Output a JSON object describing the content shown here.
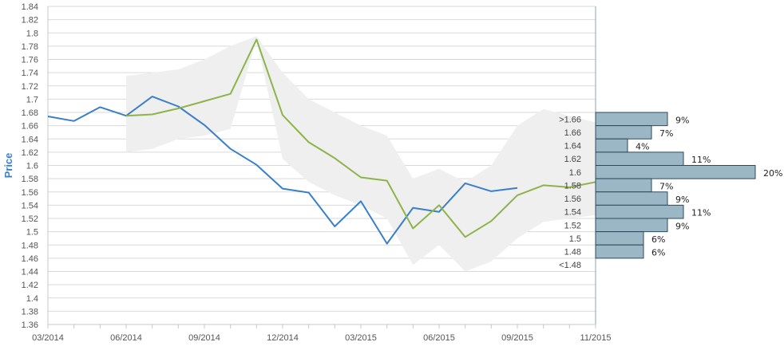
{
  "chart_data": {
    "type": "line",
    "ylabel": "Price",
    "ylim": [
      1.36,
      1.84
    ],
    "y_ticks": [
      "1.36",
      "1.38",
      "1.4",
      "1.42",
      "1.44",
      "1.46",
      "1.48",
      "1.5",
      "1.52",
      "1.54",
      "1.56",
      "1.58",
      "1.6",
      "1.62",
      "1.64",
      "1.66",
      "1.68",
      "1.7",
      "1.72",
      "1.74",
      "1.76",
      "1.78",
      "1.8",
      "1.82",
      "1.84"
    ],
    "x_ticks": [
      "03/2014",
      "06/2014",
      "09/2014",
      "12/2014",
      "03/2015",
      "06/2015",
      "09/2015",
      "11/2015"
    ],
    "grid": true,
    "colors": {
      "actual": "#3a7fc9",
      "forecast": "#8db34a",
      "band": "#efefef",
      "bars": "#9bb7c6",
      "bar_edge": "#2d4a5c"
    },
    "series": [
      {
        "key": "actual",
        "x": [
          "2014-03",
          "2014-04",
          "2014-05",
          "2014-06",
          "2014-07",
          "2014-08",
          "2014-09",
          "2014-10",
          "2014-11",
          "2014-12",
          "2015-01",
          "2015-02",
          "2015-03",
          "2015-04",
          "2015-05",
          "2015-06",
          "2015-07",
          "2015-08",
          "2015-09"
        ],
        "values": [
          1.674,
          1.667,
          1.688,
          1.675,
          1.704,
          1.689,
          1.661,
          1.625,
          1.601,
          1.565,
          1.559,
          1.508,
          1.546,
          1.482,
          1.536,
          1.53,
          1.573,
          1.561,
          1.566
        ]
      },
      {
        "key": "forecast",
        "x": [
          "2014-06",
          "2014-07",
          "2014-08",
          "2014-09",
          "2014-10",
          "2014-11",
          "2014-12",
          "2015-01",
          "2015-02",
          "2015-03",
          "2015-04",
          "2015-05",
          "2015-06",
          "2015-07",
          "2015-08",
          "2015-09",
          "2015-10",
          "2015-11",
          "2015-12"
        ],
        "values": [
          1.675,
          1.677,
          1.686,
          1.697,
          1.708,
          1.79,
          1.676,
          1.635,
          1.611,
          1.582,
          1.577,
          1.505,
          1.54,
          1.492,
          1.516,
          1.555,
          1.57,
          1.567,
          1.575
        ]
      }
    ],
    "band": {
      "x": [
        "2014-06",
        "2014-07",
        "2014-08",
        "2014-09",
        "2014-10",
        "2014-11",
        "2014-12",
        "2015-01",
        "2015-02",
        "2015-03",
        "2015-04",
        "2015-05",
        "2015-06",
        "2015-07",
        "2015-08",
        "2015-09",
        "2015-10",
        "2015-11",
        "2015-12"
      ],
      "upper": [
        1.735,
        1.74,
        1.745,
        1.76,
        1.78,
        1.795,
        1.74,
        1.7,
        1.68,
        1.66,
        1.645,
        1.58,
        1.595,
        1.575,
        1.6,
        1.66,
        1.685,
        1.675,
        1.665
      ],
      "lower": [
        1.62,
        1.625,
        1.64,
        1.645,
        1.655,
        1.79,
        1.61,
        1.575,
        1.555,
        1.54,
        1.52,
        1.45,
        1.48,
        1.44,
        1.455,
        1.49,
        1.515,
        1.52,
        1.525
      ]
    },
    "distribution": {
      "bins": [
        ">1.66",
        "1.66",
        "1.64",
        "1.62",
        "1.6",
        "1.58",
        "1.56",
        "1.54",
        "1.52",
        "1.5",
        "1.48",
        "<1.48"
      ],
      "percents": [
        9,
        7,
        4,
        11,
        20,
        7,
        9,
        11,
        9,
        6,
        6,
        null
      ],
      "labels": [
        "9%",
        "7%",
        "4%",
        "11%",
        "20%",
        "7%",
        "9%",
        "11%",
        "9%",
        "6%",
        "6%",
        ""
      ]
    }
  }
}
